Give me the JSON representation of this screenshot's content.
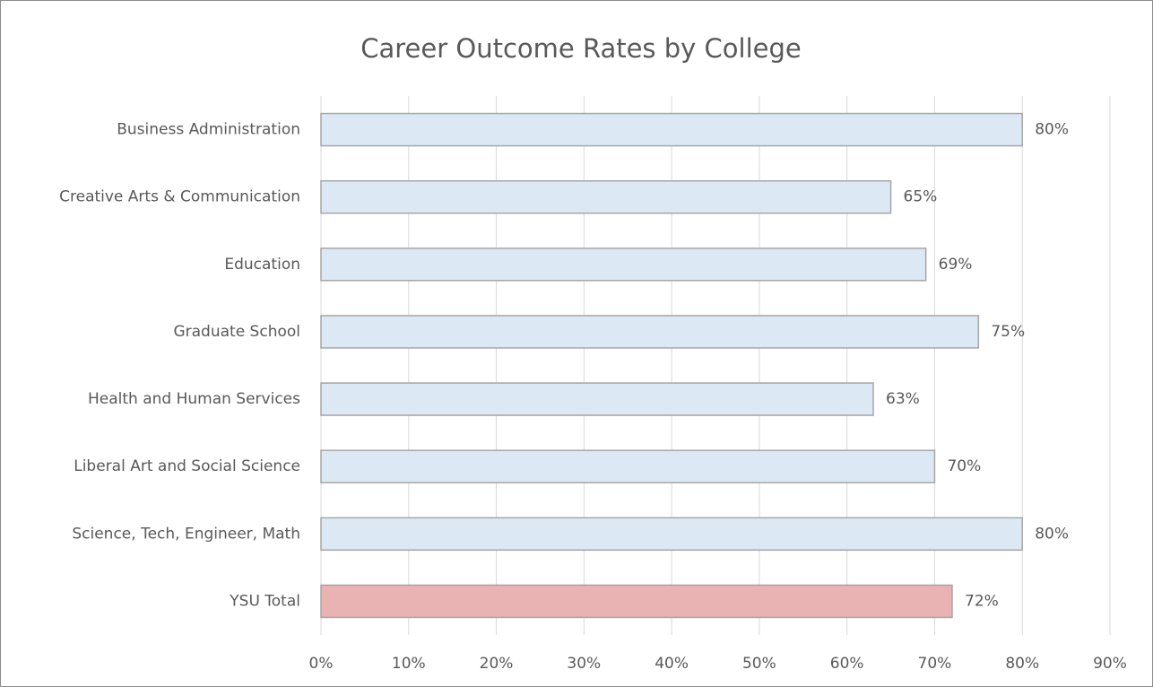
{
  "chart_data": {
    "type": "bar",
    "orientation": "horizontal",
    "title": "Career Outcome Rates by College",
    "categories": [
      "Business Administration",
      "Creative Arts & Communication",
      "Education",
      "Graduate School",
      "Health and Human Services",
      "Liberal Art and Social Science",
      "Science, Tech, Engineer, Math",
      "YSU Total"
    ],
    "values": [
      80,
      65,
      69,
      75,
      63,
      70,
      80,
      72
    ],
    "value_labels": [
      "80%",
      "65%",
      "69%",
      "75%",
      "63%",
      "70%",
      "80%",
      "72%"
    ],
    "colors": [
      "#dde8f5",
      "#dde8f5",
      "#dde8f5",
      "#dde8f5",
      "#dde8f5",
      "#dde8f5",
      "#dde8f5",
      "#e8b3b2"
    ],
    "xlim": [
      0,
      90
    ],
    "xticks": [
      {
        "value": 0,
        "label": "0%"
      },
      {
        "value": 10,
        "label": "10%"
      },
      {
        "value": 20,
        "label": "20%"
      },
      {
        "value": 30,
        "label": "30%"
      },
      {
        "value": 40,
        "label": "40%"
      },
      {
        "value": 50,
        "label": "50%"
      },
      {
        "value": 60,
        "label": "60%"
      },
      {
        "value": 70,
        "label": "70%"
      },
      {
        "value": 80,
        "label": "80%"
      },
      {
        "value": 90,
        "label": "90%"
      }
    ],
    "grid": true
  }
}
